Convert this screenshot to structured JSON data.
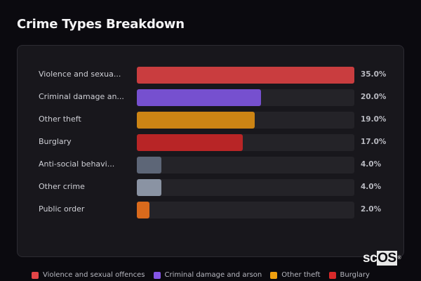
{
  "header": {
    "title": "Crime Types Breakdown"
  },
  "rows": [
    {
      "label": "Violence and sexua...",
      "value": 35.0,
      "value_text": "35.0%",
      "color": "#c93d3f"
    },
    {
      "label": "Criminal damage an...",
      "value": 20.0,
      "value_text": "20.0%",
      "color": "#7650cf"
    },
    {
      "label": "Other theft",
      "value": 19.0,
      "value_text": "19.0%",
      "color": "#cc8414"
    },
    {
      "label": "Burglary",
      "value": 17.0,
      "value_text": "17.0%",
      "color": "#b82526"
    },
    {
      "label": "Anti-social behavi...",
      "value": 4.0,
      "value_text": "4.0%",
      "color": "#5d6677"
    },
    {
      "label": "Other crime",
      "value": 4.0,
      "value_text": "4.0%",
      "color": "#8a93a3"
    },
    {
      "label": "Public order",
      "value": 2.0,
      "value_text": "2.0%",
      "color": "#d96a1c"
    }
  ],
  "legend": [
    {
      "label": "Violence and sexual offences",
      "color": "#e34547"
    },
    {
      "label": "Criminal damage and arson",
      "color": "#8556e6"
    },
    {
      "label": "Other theft",
      "color": "#f0a00f"
    },
    {
      "label": "Burglary",
      "color": "#d8292a"
    }
  ],
  "watermark": {
    "prefix": "sc",
    "highlight": "OS",
    "mark": "®"
  },
  "chart_data": {
    "type": "bar",
    "orientation": "horizontal",
    "title": "Crime Types Breakdown",
    "categories": [
      "Violence and sexual offences",
      "Criminal damage and arson",
      "Other theft",
      "Burglary",
      "Anti-social behaviour",
      "Other crime",
      "Public order"
    ],
    "values": [
      35.0,
      20.0,
      19.0,
      17.0,
      4.0,
      4.0,
      2.0
    ],
    "unit": "%",
    "xlabel": "",
    "ylabel": "",
    "xlim": [
      0,
      35
    ],
    "grid": false,
    "legend_position": "bottom",
    "legend_entries": [
      "Violence and sexual offences",
      "Criminal damage and arson",
      "Other theft",
      "Burglary"
    ]
  }
}
